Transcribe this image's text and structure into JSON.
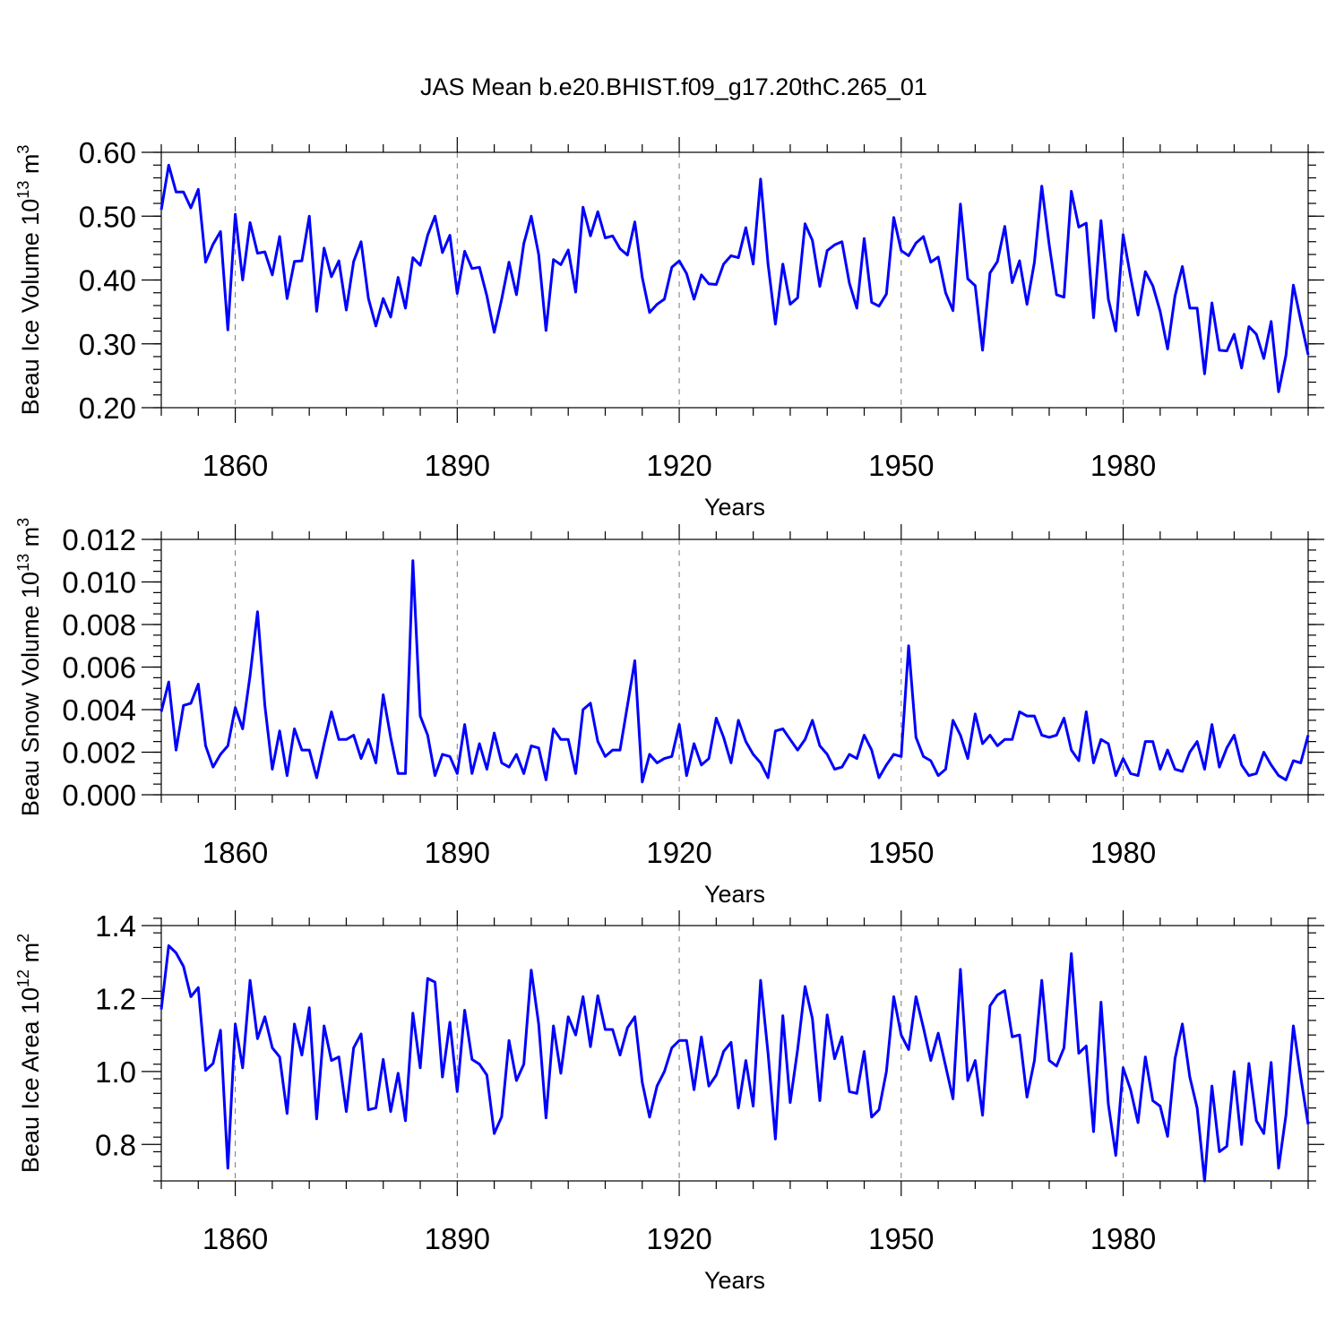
{
  "title": "JAS Mean b.e20.BHIST.f09_g17.20thC.265_01",
  "chart_data": [
    {
      "type": "line",
      "title": "JAS Mean b.e20.BHIST.f09_g17.20thC.265_01",
      "xlabel": "Years",
      "ylabel": "Beau Ice Volume",
      "ylabel_power": "10",
      "ylabel_exp": "13",
      "ylabel_unit": "m",
      "ylabel_unit_exp": "3",
      "xlim": [
        1850,
        2005
      ],
      "ylim": [
        0.2,
        0.6
      ],
      "xticks": [
        1860,
        1890,
        1920,
        1950,
        1980
      ],
      "xtick_labels": [
        "1860",
        "1890",
        "1920",
        "1950",
        "1980"
      ],
      "yticks": [
        0.2,
        0.3,
        0.4,
        0.5,
        0.6
      ],
      "ytick_labels": [
        "0.20",
        "0.30",
        "0.40",
        "0.50",
        "0.60"
      ],
      "y_minor_step": 0.02,
      "grid": "dashed vertical at major x ticks",
      "x_start": 1850,
      "series": [
        {
          "name": "Beau Ice Volume",
          "color": "#0000ff",
          "values": [
            0.51,
            0.58,
            0.538,
            0.538,
            0.513,
            0.542,
            0.428,
            0.456,
            0.476,
            0.322,
            0.503,
            0.4,
            0.49,
            0.442,
            0.444,
            0.408,
            0.468,
            0.371,
            0.429,
            0.43,
            0.5,
            0.351,
            0.45,
            0.405,
            0.43,
            0.353,
            0.429,
            0.46,
            0.371,
            0.328,
            0.371,
            0.342,
            0.404,
            0.356,
            0.435,
            0.423,
            0.47,
            0.5,
            0.443,
            0.47,
            0.379,
            0.445,
            0.418,
            0.42,
            0.375,
            0.318,
            0.37,
            0.428,
            0.377,
            0.457,
            0.5,
            0.44,
            0.321,
            0.432,
            0.424,
            0.447,
            0.381,
            0.514,
            0.469,
            0.507,
            0.466,
            0.469,
            0.449,
            0.439,
            0.491,
            0.404,
            0.349,
            0.362,
            0.37,
            0.42,
            0.43,
            0.41,
            0.37,
            0.408,
            0.394,
            0.393,
            0.425,
            0.438,
            0.435,
            0.482,
            0.425,
            0.558,
            0.425,
            0.331,
            0.425,
            0.362,
            0.372,
            0.488,
            0.462,
            0.39,
            0.446,
            0.455,
            0.46,
            0.395,
            0.356,
            0.465,
            0.365,
            0.359,
            0.378,
            0.498,
            0.446,
            0.438,
            0.458,
            0.468,
            0.428,
            0.436,
            0.38,
            0.352,
            0.519,
            0.402,
            0.391,
            0.29,
            0.411,
            0.429,
            0.484,
            0.396,
            0.43,
            0.362,
            0.428,
            0.547,
            0.455,
            0.377,
            0.373,
            0.539,
            0.483,
            0.489,
            0.341,
            0.493,
            0.37,
            0.32,
            0.471,
            0.405,
            0.345,
            0.413,
            0.391,
            0.351,
            0.292,
            0.375,
            0.421,
            0.356,
            0.356,
            0.253,
            0.364,
            0.29,
            0.289,
            0.315,
            0.262,
            0.327,
            0.315,
            0.277,
            0.335,
            0.225,
            0.282,
            0.392,
            0.337,
            0.283
          ]
        }
      ]
    },
    {
      "type": "line",
      "xlabel": "Years",
      "ylabel": "Beau Snow Volume",
      "ylabel_power": "10",
      "ylabel_exp": "13",
      "ylabel_unit": "m",
      "ylabel_unit_exp": "3",
      "xlim": [
        1850,
        2005
      ],
      "ylim": [
        0,
        0.012
      ],
      "xticks": [
        1860,
        1890,
        1920,
        1950,
        1980
      ],
      "xtick_labels": [
        "1860",
        "1890",
        "1920",
        "1950",
        "1980"
      ],
      "yticks": [
        0,
        0.002,
        0.004,
        0.006,
        0.008,
        0.01,
        0.012
      ],
      "ytick_labels": [
        "0.000",
        "0.002",
        "0.004",
        "0.006",
        "0.008",
        "0.010",
        "0.012"
      ],
      "y_minor_step": 0.0005,
      "grid": "dashed vertical at major x ticks",
      "x_start": 1850,
      "series": [
        {
          "name": "Beau Snow Volume",
          "color": "#0000ff",
          "values": [
            0.0039,
            0.0053,
            0.0021,
            0.0042,
            0.0043,
            0.0052,
            0.0023,
            0.0013,
            0.0019,
            0.0023,
            0.0041,
            0.0031,
            0.0056,
            0.0086,
            0.0042,
            0.0012,
            0.003,
            0.0009,
            0.0031,
            0.0021,
            0.0021,
            0.0008,
            0.0024,
            0.0039,
            0.0026,
            0.0026,
            0.0028,
            0.0017,
            0.0026,
            0.0015,
            0.0047,
            0.0027,
            0.001,
            0.001,
            0.011,
            0.0037,
            0.0028,
            0.0009,
            0.0019,
            0.0018,
            0.001,
            0.0033,
            0.001,
            0.0024,
            0.0012,
            0.0029,
            0.0015,
            0.0013,
            0.0019,
            0.001,
            0.0023,
            0.0022,
            0.0007,
            0.0031,
            0.0026,
            0.0026,
            0.001,
            0.004,
            0.0043,
            0.0025,
            0.0018,
            0.0021,
            0.0021,
            0.0042,
            0.0063,
            0.0006,
            0.0019,
            0.0015,
            0.0017,
            0.0018,
            0.0033,
            0.0009,
            0.0024,
            0.0014,
            0.0017,
            0.0036,
            0.0027,
            0.0015,
            0.0035,
            0.0025,
            0.0019,
            0.0015,
            0.0008,
            0.003,
            0.0031,
            0.0026,
            0.0021,
            0.0026,
            0.0035,
            0.0023,
            0.0019,
            0.0012,
            0.0013,
            0.0019,
            0.0017,
            0.0028,
            0.0021,
            0.0008,
            0.0014,
            0.0019,
            0.0018,
            0.007,
            0.0027,
            0.0018,
            0.0016,
            0.0009,
            0.0012,
            0.0035,
            0.0028,
            0.0017,
            0.0038,
            0.0024,
            0.0028,
            0.0023,
            0.0026,
            0.0026,
            0.0039,
            0.0037,
            0.0037,
            0.0028,
            0.0027,
            0.0028,
            0.0036,
            0.0021,
            0.0016,
            0.0039,
            0.0015,
            0.0026,
            0.0024,
            0.0009,
            0.0017,
            0.001,
            0.0009,
            0.0025,
            0.0025,
            0.0012,
            0.0021,
            0.0012,
            0.0011,
            0.002,
            0.0025,
            0.0012,
            0.0033,
            0.0013,
            0.0022,
            0.0028,
            0.0014,
            0.0009,
            0.001,
            0.002,
            0.0014,
            0.0009,
            0.0007,
            0.0016,
            0.0015,
            0.0028
          ]
        }
      ]
    },
    {
      "type": "line",
      "xlabel": "Years",
      "ylabel": "Beau Ice Area",
      "ylabel_power": "10",
      "ylabel_exp": "12",
      "ylabel_unit": "m",
      "ylabel_unit_exp": "2",
      "xlim": [
        1850,
        2005
      ],
      "ylim": [
        0.7,
        1.4
      ],
      "xticks": [
        1860,
        1890,
        1920,
        1950,
        1980
      ],
      "xtick_labels": [
        "1860",
        "1890",
        "1920",
        "1950",
        "1980"
      ],
      "yticks": [
        0.8,
        1.0,
        1.2,
        1.4
      ],
      "ytick_labels": [
        "0.8",
        "1.0",
        "1.2",
        "1.4"
      ],
      "y_minor_step": 0.04,
      "grid": "dashed vertical at major x ticks",
      "x_start": 1850,
      "series": [
        {
          "name": "Beau Ice Area",
          "color": "#0000ff",
          "values": [
            1.17,
            1.345,
            1.325,
            1.288,
            1.205,
            1.23,
            1.003,
            1.022,
            1.113,
            0.735,
            1.13,
            1.01,
            1.25,
            1.09,
            1.15,
            1.065,
            1.04,
            0.885,
            1.13,
            1.045,
            1.175,
            0.87,
            1.125,
            1.03,
            1.04,
            0.89,
            1.065,
            1.103,
            0.895,
            0.9,
            1.033,
            0.89,
            0.995,
            0.865,
            1.16,
            1.01,
            1.255,
            1.245,
            0.985,
            1.135,
            0.945,
            1.168,
            1.033,
            1.02,
            0.99,
            0.83,
            0.876,
            1.085,
            0.975,
            1.02,
            1.278,
            1.13,
            0.873,
            1.125,
            0.995,
            1.15,
            1.1,
            1.205,
            1.068,
            1.208,
            1.115,
            1.115,
            1.045,
            1.12,
            1.15,
            0.97,
            0.875,
            0.96,
            1.0,
            1.065,
            1.085,
            1.085,
            0.95,
            1.095,
            0.96,
            0.99,
            1.055,
            1.08,
            0.9,
            1.03,
            0.905,
            1.25,
            1.05,
            0.815,
            1.153,
            0.915,
            1.06,
            1.233,
            1.145,
            0.92,
            1.155,
            1.035,
            1.095,
            0.945,
            0.94,
            1.055,
            0.875,
            0.895,
            1.0,
            1.205,
            1.1,
            1.06,
            1.205,
            1.12,
            1.03,
            1.105,
            1.015,
            0.925,
            1.28,
            0.975,
            1.03,
            0.88,
            1.18,
            1.21,
            1.222,
            1.095,
            1.1,
            0.93,
            1.03,
            1.25,
            1.03,
            1.015,
            1.065,
            1.323,
            1.05,
            1.07,
            0.835,
            1.19,
            0.91,
            0.77,
            1.01,
            0.95,
            0.86,
            1.04,
            0.92,
            0.905,
            0.822,
            1.035,
            1.13,
            0.985,
            0.9,
            0.7,
            0.96,
            0.78,
            0.795,
            1.0,
            0.8,
            1.022,
            0.865,
            0.83,
            1.025,
            0.735,
            0.88,
            1.125,
            0.985,
            0.855
          ]
        }
      ]
    }
  ]
}
